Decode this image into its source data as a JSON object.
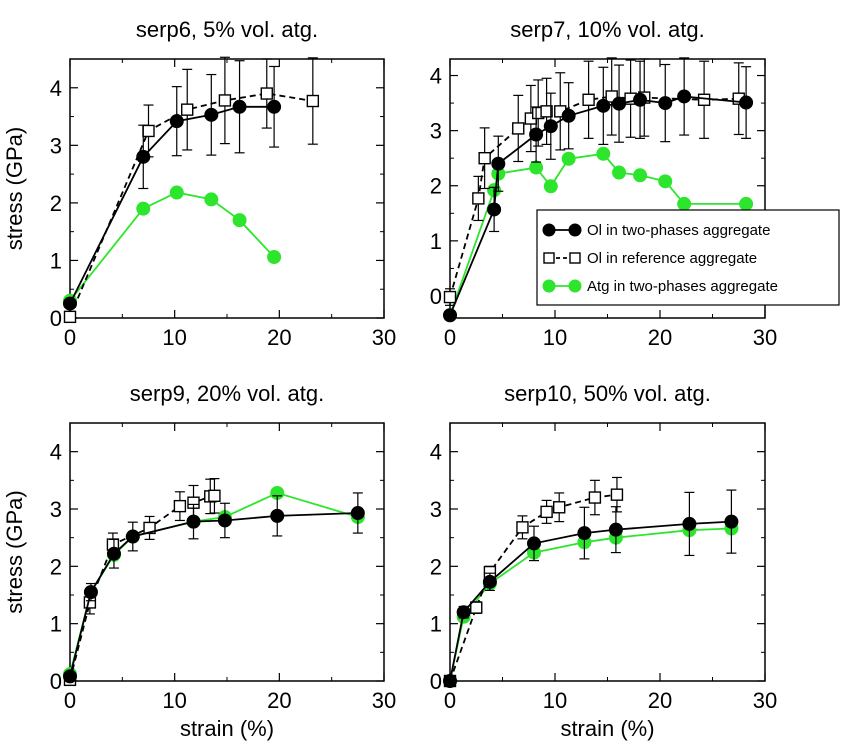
{
  "legend": {
    "entries": [
      {
        "label": "Ol in two-phases aggregate",
        "series": "ol_two_phase"
      },
      {
        "label": "Ol in reference aggregate",
        "series": "ol_reference"
      },
      {
        "label": "Atg in two-phases aggregate",
        "series": "atg_two_phase"
      }
    ],
    "placement": "panel 2, lower right"
  },
  "colors": {
    "ol_two_phase": "#000000",
    "ol_reference": "#000000",
    "atg_two_phase": "#2ee52e"
  },
  "chart_data": [
    {
      "type": "scatter",
      "title": "serp6, 5% vol. atg.",
      "xlabel": "",
      "ylabel": "stress (GPa)",
      "xlim": [
        0,
        30
      ],
      "ylim": [
        0,
        4.5
      ],
      "xticks": [
        0,
        10,
        20,
        30
      ],
      "yticks": [
        0,
        1,
        2,
        3,
        4
      ],
      "xtick_labels": [
        "0",
        "10",
        "20",
        "30"
      ],
      "ytick_labels": [
        "0",
        "1",
        "2",
        "3",
        "4"
      ],
      "series": [
        {
          "key": "ol_two_phase",
          "x": [
            0,
            7,
            10.2,
            13.5,
            16.2,
            19.5
          ],
          "y": [
            0.25,
            2.8,
            3.42,
            3.53,
            3.67,
            3.67
          ],
          "err": [
            0,
            0.55,
            0.6,
            0.7,
            0.8,
            0.7
          ]
        },
        {
          "key": "ol_reference",
          "x": [
            0,
            7.5,
            11.2,
            14.8,
            18.8,
            23.2
          ],
          "y": [
            0.02,
            3.25,
            3.62,
            3.78,
            3.9,
            3.77
          ],
          "err": [
            0,
            0.45,
            0.7,
            0.75,
            0.6,
            0.75
          ]
        },
        {
          "key": "atg_two_phase",
          "x": [
            0,
            7,
            10.2,
            13.5,
            16.2,
            19.5
          ],
          "y": [
            0.3,
            1.9,
            2.18,
            2.06,
            1.7,
            1.06
          ],
          "err": null
        }
      ]
    },
    {
      "type": "scatter",
      "title": "serp7, 10% vol. atg.",
      "xlabel": "",
      "ylabel": "",
      "xlim": [
        0,
        30
      ],
      "ylim": [
        -0.4,
        4.3
      ],
      "xticks": [
        0,
        10,
        20,
        30
      ],
      "yticks": [
        0,
        1,
        2,
        3,
        4
      ],
      "xtick_labels": [
        "0",
        "10",
        "20",
        "30"
      ],
      "ytick_labels": [
        "0",
        "1",
        "2",
        "3",
        "4"
      ],
      "series": [
        {
          "key": "ol_two_phase",
          "x": [
            0,
            4.2,
            4.6,
            8.2,
            9.6,
            11.3,
            14.6,
            16.1,
            18.1,
            20.5,
            22.3,
            28.2
          ],
          "y": [
            -0.35,
            1.57,
            2.4,
            2.93,
            3.08,
            3.27,
            3.45,
            3.49,
            3.56,
            3.5,
            3.62,
            3.51
          ],
          "err": [
            0,
            0.4,
            0.5,
            0.5,
            0.6,
            0.6,
            0.7,
            0.7,
            0.7,
            0.7,
            0.7,
            0.65
          ]
        },
        {
          "key": "ol_reference",
          "x": [
            0,
            2.7,
            3.3,
            6.5,
            7.7,
            8.4,
            9.2,
            10.5,
            13.2,
            15.4,
            17.2,
            18.5,
            24.2,
            27.5
          ],
          "y": [
            -0.02,
            1.77,
            2.5,
            3.04,
            3.22,
            3.32,
            3.35,
            3.35,
            3.56,
            3.62,
            3.58,
            3.6,
            3.56,
            3.58
          ],
          "err": [
            0.15,
            0.4,
            0.55,
            0.6,
            0.6,
            0.6,
            0.6,
            0.7,
            0.7,
            0.7,
            0.7,
            0.7,
            0.7,
            0.65
          ]
        },
        {
          "key": "atg_two_phase",
          "x": [
            0,
            4.2,
            4.6,
            8.2,
            9.6,
            11.3,
            14.6,
            16.1,
            18.1,
            20.5,
            22.3,
            28.2
          ],
          "y": [
            -0.35,
            1.92,
            2.22,
            2.33,
            1.99,
            2.49,
            2.58,
            2.24,
            2.19,
            2.08,
            1.67,
            1.67
          ],
          "err": null
        }
      ]
    },
    {
      "type": "scatter",
      "title": "serp9, 20% vol. atg.",
      "xlabel": "strain (%)",
      "ylabel": "stress (GPa)",
      "xlim": [
        0,
        30
      ],
      "ylim": [
        0,
        4.5
      ],
      "xticks": [
        0,
        10,
        20,
        30
      ],
      "yticks": [
        0,
        1,
        2,
        3,
        4
      ],
      "xtick_labels": [
        "0",
        "10",
        "20",
        "30"
      ],
      "ytick_labels": [
        "0",
        "1",
        "2",
        "3",
        "4"
      ],
      "series": [
        {
          "key": "ol_two_phase",
          "x": [
            0,
            2,
            4.2,
            6,
            11.8,
            14.8,
            19.8,
            27.5
          ],
          "y": [
            0.08,
            1.55,
            2.22,
            2.52,
            2.78,
            2.8,
            2.88,
            2.93
          ],
          "err": [
            0,
            0.15,
            0.25,
            0.25,
            0.3,
            0.3,
            0.35,
            0.35
          ]
        },
        {
          "key": "ol_reference",
          "x": [
            0,
            1.9,
            4.1,
            7.6,
            10.5,
            11.8,
            13.4,
            13.8
          ],
          "y": [
            0.02,
            1.37,
            2.38,
            2.67,
            3.05,
            3.11,
            3.22,
            3.23
          ],
          "err": [
            0,
            0.2,
            0.2,
            0.2,
            0.25,
            0.3,
            0.3,
            0.3
          ]
        },
        {
          "key": "atg_two_phase",
          "x": [
            0,
            2,
            4.2,
            6,
            11.8,
            14.8,
            19.8,
            27.5
          ],
          "y": [
            0.12,
            1.55,
            2.2,
            2.52,
            2.78,
            2.86,
            3.28,
            2.86
          ],
          "err": null
        }
      ]
    },
    {
      "type": "scatter",
      "title": "serp10, 50% vol. atg.",
      "xlabel": "strain (%)",
      "ylabel": "",
      "xlim": [
        0,
        30
      ],
      "ylim": [
        0,
        4.5
      ],
      "xticks": [
        0,
        10,
        20,
        30
      ],
      "yticks": [
        0,
        1,
        2,
        3,
        4
      ],
      "xtick_labels": [
        "0",
        "10",
        "20",
        "30"
      ],
      "ytick_labels": [
        "0",
        "1",
        "2",
        "3",
        "4"
      ],
      "series": [
        {
          "key": "ol_two_phase",
          "x": [
            0,
            1.3,
            3.8,
            8,
            12.8,
            15.8,
            22.8,
            26.8
          ],
          "y": [
            0,
            1.2,
            1.73,
            2.4,
            2.58,
            2.64,
            2.74,
            2.78
          ],
          "err": [
            0,
            0.1,
            0.15,
            0.3,
            0.45,
            0.4,
            0.55,
            0.55
          ]
        },
        {
          "key": "ol_reference",
          "x": [
            0,
            2.5,
            3.8,
            6.9,
            9.2,
            10.4,
            13.8,
            15.9
          ],
          "y": [
            0,
            1.28,
            1.9,
            2.68,
            2.95,
            3.03,
            3.2,
            3.25
          ],
          "err": [
            0,
            0.1,
            0.1,
            0.2,
            0.2,
            0.25,
            0.3,
            0.3
          ]
        },
        {
          "key": "atg_two_phase",
          "x": [
            0,
            1.3,
            3.8,
            8,
            12.8,
            15.8,
            22.8,
            26.8
          ],
          "y": [
            0,
            1.12,
            1.7,
            2.24,
            2.42,
            2.5,
            2.63,
            2.66
          ],
          "err": null
        }
      ]
    }
  ]
}
